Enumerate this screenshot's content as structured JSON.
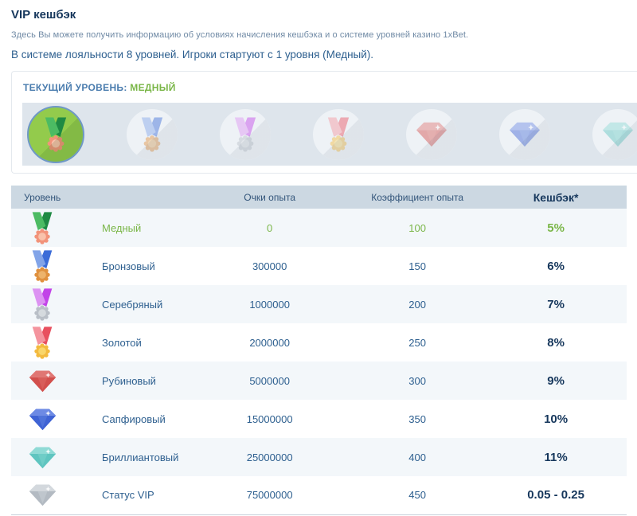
{
  "page": {
    "title": "VIP кешбэк",
    "subtitle": "Здесь Вы можете получить информацию об условиях начисления кешбэка и о системе уровней казино 1xBet.",
    "intro": "В системе лояльности 8 уровней. Игроки стартуют с 1 уровня (Медный)."
  },
  "current_level": {
    "label": "ТЕКУЩИЙ УРОВЕНЬ:",
    "value": "МЕДНЫЙ"
  },
  "level_slider": {
    "icons": [
      {
        "name": "copper-medal-icon",
        "icon": "copper",
        "shape": "medal",
        "active": true
      },
      {
        "name": "bronze-medal-icon",
        "icon": "bronze",
        "shape": "medal",
        "active": false
      },
      {
        "name": "silver-medal-icon",
        "icon": "silver",
        "shape": "medal",
        "active": false
      },
      {
        "name": "gold-medal-icon",
        "icon": "gold",
        "shape": "medal",
        "active": false
      },
      {
        "name": "ruby-gem-icon",
        "icon": "ruby",
        "shape": "gem",
        "active": false
      },
      {
        "name": "sapphire-gem-icon",
        "icon": "sapphire",
        "shape": "gem",
        "active": false
      },
      {
        "name": "diamond-gem-icon",
        "icon": "diamond",
        "shape": "gem",
        "active": false
      }
    ]
  },
  "table": {
    "headers": [
      "Уровень",
      "Очки опыта",
      "Коэффициент опыта",
      "Кешбэк*"
    ],
    "rows": [
      {
        "level": "Медный",
        "xp": "0",
        "coef": "100",
        "cashback": "5%",
        "icon": "copper",
        "shape": "medal",
        "active": true
      },
      {
        "level": "Бронзовый",
        "xp": "300000",
        "coef": "150",
        "cashback": "6%",
        "icon": "bronze",
        "shape": "medal",
        "active": false
      },
      {
        "level": "Серебряный",
        "xp": "1000000",
        "coef": "200",
        "cashback": "7%",
        "icon": "silver",
        "shape": "medal",
        "active": false
      },
      {
        "level": "Золотой",
        "xp": "2000000",
        "coef": "250",
        "cashback": "8%",
        "icon": "gold",
        "shape": "medal",
        "active": false
      },
      {
        "level": "Рубиновый",
        "xp": "5000000",
        "coef": "300",
        "cashback": "9%",
        "icon": "ruby",
        "shape": "gem",
        "active": false
      },
      {
        "level": "Сапфировый",
        "xp": "15000000",
        "coef": "350",
        "cashback": "10%",
        "icon": "sapphire",
        "shape": "gem",
        "active": false
      },
      {
        "level": "Бриллиантовый",
        "xp": "25000000",
        "coef": "400",
        "cashback": "11%",
        "icon": "diamond",
        "shape": "gem",
        "active": false
      },
      {
        "level": "Статус VIP",
        "xp": "75000000",
        "coef": "450",
        "cashback": "0.05 - 0.25",
        "icon": "vip",
        "shape": "gem",
        "active": false
      }
    ]
  },
  "colors": {
    "accent_green": "#7ab648",
    "heading_navy": "#16375c",
    "body_blue": "#2d5f8f",
    "muted_blue": "#708aa5",
    "label_blue": "#4a7cae",
    "header_text": "#33557a",
    "table_header_bg": "#ccd8e2",
    "row_alt_bg": "#f3f7fa",
    "strip_bg": "#dee5ec",
    "active_circle": "#93cb4c",
    "active_circle_ring": "#6f98c6",
    "inactive_circle": "#eef2f6"
  }
}
